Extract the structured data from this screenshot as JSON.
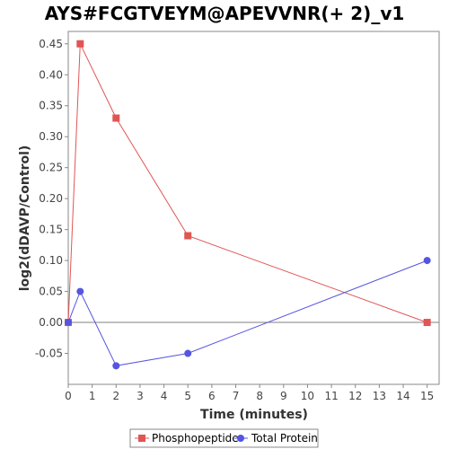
{
  "chart_data": {
    "type": "line",
    "title": "AYS#FCGTVEYM@APEVVNR(+ 2)_v1",
    "xlabel": "Time (minutes)",
    "ylabel": "log2(dDAVP/Control)",
    "xlim": [
      0,
      15.5
    ],
    "ylim": [
      -0.1,
      0.47
    ],
    "x_ticks": [
      0,
      1,
      2,
      3,
      4,
      5,
      6,
      7,
      8,
      9,
      10,
      11,
      12,
      13,
      14,
      15
    ],
    "y_ticks": [
      -0.05,
      0.0,
      0.05,
      0.1,
      0.15,
      0.2,
      0.25,
      0.3,
      0.35,
      0.4,
      0.45
    ],
    "y_tick_labels": [
      "-0.05",
      "0.00",
      "0.05",
      "0.10",
      "0.15",
      "0.20",
      "0.25",
      "0.30",
      "0.35",
      "0.40",
      "0.45"
    ],
    "zero_line": true,
    "grid": false,
    "legend_position": "bottom",
    "series": [
      {
        "name": "Phosphopeptide",
        "color": "#e05555",
        "marker": "square",
        "x": [
          0,
          0.5,
          2,
          5,
          15
        ],
        "y": [
          0.0,
          0.45,
          0.33,
          0.14,
          0.0
        ]
      },
      {
        "name": "Total Protein",
        "color": "#5555e0",
        "marker": "circle",
        "x": [
          0,
          0.5,
          2,
          5,
          15
        ],
        "y": [
          0.0,
          0.05,
          -0.07,
          -0.05,
          0.1
        ]
      }
    ]
  }
}
